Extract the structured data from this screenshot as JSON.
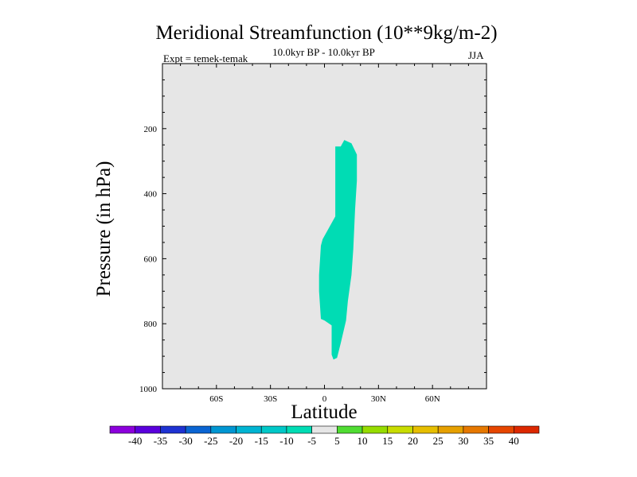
{
  "chart_data": {
    "type": "contour",
    "title": "Meridional Streamfunction (10**9kg/m-2)",
    "subtitle": "10.0kyr BP - 10.0kyr BP",
    "left_label": "Expt = temek-temak",
    "right_label": "JJA",
    "xlabel": "Latitude",
    "ylabel": "Pressure (in hPa)",
    "xlim": [
      -90,
      90
    ],
    "ylim": [
      1000,
      0
    ],
    "x_ticks": [
      {
        "value": -60,
        "label": "60S"
      },
      {
        "value": -30,
        "label": "30S"
      },
      {
        "value": 0,
        "label": "0"
      },
      {
        "value": 30,
        "label": "30N"
      },
      {
        "value": 60,
        "label": "60N"
      }
    ],
    "y_ticks": [
      {
        "value": 200,
        "label": "200"
      },
      {
        "value": 400,
        "label": "400"
      },
      {
        "value": 600,
        "label": "600"
      },
      {
        "value": 800,
        "label": "800"
      },
      {
        "value": 1000,
        "label": "1000"
      }
    ],
    "background_color": "#e6e6e6",
    "regions": [
      {
        "level": "-10 to -5",
        "color": "#00dcb4",
        "polygon": [
          [
            11,
            235
          ],
          [
            15,
            245
          ],
          [
            18,
            280
          ],
          [
            18,
            360
          ],
          [
            17,
            450
          ],
          [
            16,
            570
          ],
          [
            15,
            650
          ],
          [
            13,
            730
          ],
          [
            12,
            790
          ],
          [
            9,
            860
          ],
          [
            7,
            905
          ],
          [
            5,
            910
          ],
          [
            4,
            895
          ],
          [
            4,
            805
          ],
          [
            0,
            790
          ],
          [
            -2,
            785
          ],
          [
            -3,
            700
          ],
          [
            -3,
            650
          ],
          [
            -2,
            560
          ],
          [
            -1,
            540
          ],
          [
            3,
            500
          ],
          [
            6,
            470
          ],
          [
            6,
            380
          ],
          [
            6,
            255
          ],
          [
            9,
            255
          ]
        ]
      }
    ],
    "colorbar": {
      "labels": [
        "-40",
        "-35",
        "-30",
        "-25",
        "-20",
        "-15",
        "-10",
        "-5",
        "5",
        "10",
        "15",
        "20",
        "25",
        "30",
        "35",
        "40"
      ],
      "colors": [
        "#8c00dc",
        "#5a00dc",
        "#1e32d2",
        "#0a64d2",
        "#0096d2",
        "#00b4d2",
        "#00c8c8",
        "#00dcb4",
        "#e6e6e6",
        "#50dc32",
        "#96dc00",
        "#c8dc00",
        "#e6be00",
        "#e6a000",
        "#e67800",
        "#e64600",
        "#dc2800"
      ]
    }
  }
}
